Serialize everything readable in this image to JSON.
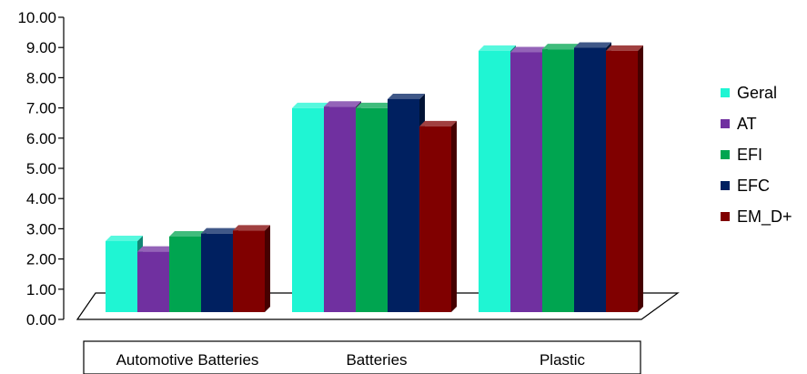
{
  "chart_data": {
    "type": "bar",
    "categories": [
      "Automotive Batteries",
      "Batteries",
      "Plastic"
    ],
    "series": [
      {
        "name": "Geral",
        "color": "#1ff5d3",
        "values": [
          2.35,
          6.75,
          8.65
        ]
      },
      {
        "name": "AT",
        "color": "#7030a0",
        "values": [
          2.0,
          6.8,
          8.6
        ]
      },
      {
        "name": "EFI",
        "color": "#00a550",
        "values": [
          2.5,
          6.75,
          8.7
        ]
      },
      {
        "name": "EFC",
        "color": "#002060",
        "values": [
          2.6,
          7.05,
          8.75
        ]
      },
      {
        "name": "EM_D+",
        "color": "#800000",
        "values": [
          2.7,
          6.15,
          8.65
        ]
      }
    ],
    "ylim": [
      0,
      10
    ],
    "yticks": [
      "0.00",
      "1.00",
      "2.00",
      "3.00",
      "4.00",
      "5.00",
      "6.00",
      "7.00",
      "8.00",
      "9.00",
      "10.00"
    ],
    "legend_position": "right",
    "grid": false,
    "title": "",
    "xlabel": "",
    "ylabel": ""
  }
}
